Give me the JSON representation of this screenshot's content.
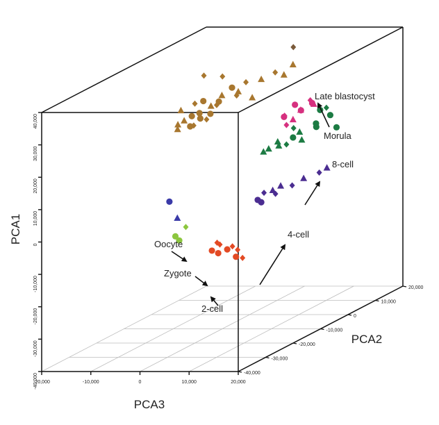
{
  "chart_data": {
    "type": "scatter",
    "title": "",
    "xlabel": "PCA3",
    "ylabel": "PCA2",
    "zlabel": "PCA1",
    "xlim": [
      -20000,
      20000
    ],
    "ylim": [
      -40000,
      20000
    ],
    "zlim": [
      -40000,
      40000
    ],
    "grid": true,
    "axis_titles": {
      "pca1": "PCA1",
      "pca2": "PCA2",
      "pca3": "PCA3"
    },
    "ticks": {
      "pca1": [
        "-40,000",
        "-30,000",
        "-20,000",
        "-10,000",
        "0",
        "10,000",
        "20,000",
        "30,000",
        "40,000"
      ],
      "pca2": [
        "-40,000",
        "-30,000",
        "-20,000",
        "-10,000",
        "0",
        "10,000",
        "20,000"
      ],
      "pca3": [
        "-20,000",
        "-10,000",
        "0",
        "10,000",
        "20,000"
      ]
    },
    "labels": {
      "late_blastocyst": "Late blastocyst",
      "morula": "Morula",
      "eight_cell": "8-cell",
      "four_cell": "4-cell",
      "oocyte": "Oocyte",
      "zygote": "Zygote",
      "two_cell": "2-cell"
    },
    "colors": {
      "brown": "#a8772f",
      "pink": "#d6307f",
      "green": "#1c7b43",
      "purple": "#4b2d91",
      "blue": "#3a3aa8",
      "lightgreen": "#8cc63f",
      "red": "#e34a24"
    },
    "series": [
      {
        "label_key": "late_blastocyst",
        "color": "#7a5a3a",
        "points": [
          {
            "x": 500,
            "y": 15000,
            "z": 36000,
            "m": "diamond"
          }
        ]
      },
      {
        "label_key": "morula",
        "color": "#d6307f",
        "points": [
          {
            "x": 12000,
            "y": -5000,
            "z": 27000,
            "m": "circle"
          },
          {
            "x": 13500,
            "y": -5500,
            "z": 25500,
            "m": "circle"
          },
          {
            "x": 14000,
            "y": -3000,
            "z": 27500,
            "m": "diamond"
          },
          {
            "x": 15000,
            "y": -3500,
            "z": 26500,
            "m": "triangle"
          },
          {
            "x": 11000,
            "y": -7000,
            "z": 24500,
            "m": "diamond"
          },
          {
            "x": 13000,
            "y": -7500,
            "z": 23500,
            "m": "triangle"
          },
          {
            "x": 12500,
            "y": -9000,
            "z": 22500,
            "m": "diamond"
          },
          {
            "x": 15500,
            "y": -5000,
            "z": 27500,
            "m": "circle"
          },
          {
            "x": 14000,
            "y": -6500,
            "z": 26000,
            "m": "triangle"
          },
          {
            "x": 12000,
            "y": -9000,
            "z": 25000,
            "m": "circle"
          }
        ]
      },
      {
        "label_key": "eight_cell",
        "color": "#1c7b43",
        "points": [
          {
            "x": 10000,
            "y": -11000,
            "z": 16000,
            "m": "triangle"
          },
          {
            "x": 11000,
            "y": -9500,
            "z": 17500,
            "m": "triangle"
          },
          {
            "x": 12500,
            "y": -9000,
            "z": 16500,
            "m": "diamond"
          },
          {
            "x": 13000,
            "y": -7500,
            "z": 18000,
            "m": "circle"
          },
          {
            "x": 14500,
            "y": -7000,
            "z": 17000,
            "m": "triangle"
          },
          {
            "x": 12000,
            "y": -5500,
            "z": 20000,
            "m": "diamond"
          },
          {
            "x": 16000,
            "y": -4500,
            "z": 21000,
            "m": "circle"
          },
          {
            "x": 15500,
            "y": -3500,
            "z": 19500,
            "m": "circle"
          },
          {
            "x": 17500,
            "y": -2000,
            "z": 22500,
            "m": "circle"
          },
          {
            "x": 18500,
            "y": -1500,
            "z": 18500,
            "m": "circle"
          },
          {
            "x": 17000,
            "y": -2500,
            "z": 25000,
            "m": "diamond"
          },
          {
            "x": 13500,
            "y": -6000,
            "z": 19000,
            "m": "triangle"
          },
          {
            "x": 16000,
            "y": -3000,
            "z": 24500,
            "m": "circle"
          },
          {
            "x": 11500,
            "y": -10000,
            "z": 16500,
            "m": "triangle"
          },
          {
            "x": 9500,
            "y": -12000,
            "z": 15500,
            "m": "triangle"
          }
        ]
      },
      {
        "label_key": "four_cell",
        "color": "#4b2d91",
        "points": [
          {
            "x": 10000,
            "y": -15000,
            "z": 2000,
            "m": "circle"
          },
          {
            "x": 11000,
            "y": -14500,
            "z": 4000,
            "m": "diamond"
          },
          {
            "x": 12500,
            "y": -13000,
            "z": 3000,
            "m": "diamond"
          },
          {
            "x": 13000,
            "y": -12000,
            "z": 5000,
            "m": "triangle"
          },
          {
            "x": 14500,
            "y": -10500,
            "z": 4500,
            "m": "diamond"
          },
          {
            "x": 16000,
            "y": -9000,
            "z": 6000,
            "m": "triangle"
          },
          {
            "x": 17500,
            "y": -6000,
            "z": 6500,
            "m": "diamond"
          },
          {
            "x": 18500,
            "y": -5000,
            "z": 7500,
            "m": "triangle"
          },
          {
            "x": 11000,
            "y": -15500,
            "z": 1500,
            "m": "circle"
          },
          {
            "x": 12500,
            "y": -14000,
            "z": 4500,
            "m": "triangle"
          }
        ]
      },
      {
        "label_key": "oocyte",
        "color": "#3a3aa8",
        "points": [
          {
            "x": -3500,
            "y": -23000,
            "z": 5000,
            "m": "circle"
          },
          {
            "x": -3000,
            "y": -21000,
            "z": -1000,
            "m": "triangle"
          }
        ]
      },
      {
        "label_key": "zygote",
        "color": "#8cc63f",
        "points": [
          {
            "x": -1500,
            "y": -23000,
            "z": -7000,
            "m": "circle"
          },
          {
            "x": -1000,
            "y": -21500,
            "z": -3500,
            "m": "diamond"
          },
          {
            "x": -2000,
            "y": -23500,
            "z": -5500,
            "m": "circle"
          }
        ]
      },
      {
        "label_key": "two_cell",
        "color": "#e34a24",
        "points": [
          {
            "x": 8500,
            "y": -29000,
            "z": -7500,
            "m": "circle"
          },
          {
            "x": 9000,
            "y": -27000,
            "z": -6500,
            "m": "diamond"
          },
          {
            "x": 9500,
            "y": -28500,
            "z": -8500,
            "m": "circle"
          },
          {
            "x": 10500,
            "y": -27000,
            "z": -8000,
            "m": "circle"
          },
          {
            "x": 11000,
            "y": -26000,
            "z": -7500,
            "m": "diamond"
          },
          {
            "x": 11500,
            "y": -25000,
            "z": -9000,
            "m": "diamond"
          },
          {
            "x": 12000,
            "y": -26500,
            "z": -10500,
            "m": "circle"
          },
          {
            "x": 12500,
            "y": -25000,
            "z": -11500,
            "m": "diamond"
          },
          {
            "x": 9000,
            "y": -28000,
            "z": -5500,
            "m": "diamond"
          }
        ]
      },
      {
        "label_key": "",
        "color": "#a8772f",
        "points": [
          {
            "x": -14000,
            "y": 0,
            "z": 23000,
            "m": "triangle"
          },
          {
            "x": -12000,
            "y": 1500,
            "z": 24500,
            "m": "diamond"
          },
          {
            "x": -10000,
            "y": 1000,
            "z": 25500,
            "m": "circle"
          },
          {
            "x": -9000,
            "y": 2000,
            "z": 23500,
            "m": "triangle"
          },
          {
            "x": -11500,
            "y": -500,
            "z": 21500,
            "m": "circle"
          },
          {
            "x": -10500,
            "y": 500,
            "z": 22000,
            "m": "circle"
          },
          {
            "x": -9500,
            "y": -1000,
            "z": 21000,
            "m": "circle"
          },
          {
            "x": -8500,
            "y": -500,
            "z": 20500,
            "m": "diamond"
          },
          {
            "x": -12500,
            "y": -1500,
            "z": 20500,
            "m": "triangle"
          },
          {
            "x": -13500,
            "y": -2000,
            "z": 19500,
            "m": "triangle"
          },
          {
            "x": -11000,
            "y": -2000,
            "z": 19000,
            "m": "circle"
          },
          {
            "x": -10000,
            "y": -2500,
            "z": 19500,
            "m": "diamond"
          },
          {
            "x": -8000,
            "y": 0,
            "z": 22000,
            "m": "circle"
          },
          {
            "x": -7000,
            "y": 500,
            "z": 24500,
            "m": "diamond"
          },
          {
            "x": -6500,
            "y": 1500,
            "z": 27000,
            "m": "triangle"
          },
          {
            "x": -7500,
            "y": 3500,
            "z": 32000,
            "m": "diamond"
          },
          {
            "x": -11000,
            "y": 3000,
            "z": 32500,
            "m": "diamond"
          },
          {
            "x": -5000,
            "y": 2500,
            "z": 29000,
            "m": "circle"
          },
          {
            "x": -4000,
            "y": 3000,
            "z": 27500,
            "m": "triangle"
          },
          {
            "x": -3000,
            "y": 4000,
            "z": 30000,
            "m": "diamond"
          },
          {
            "x": -2000,
            "y": 4500,
            "z": 25000,
            "m": "triangle"
          },
          {
            "x": -1000,
            "y": 6000,
            "z": 30000,
            "m": "triangle"
          },
          {
            "x": 1000,
            "y": 7500,
            "z": 31500,
            "m": "diamond"
          },
          {
            "x": 2500,
            "y": 8000,
            "z": 30500,
            "m": "triangle"
          },
          {
            "x": 3500,
            "y": 9500,
            "z": 33000,
            "m": "triangle"
          },
          {
            "x": -3500,
            "y": 1500,
            "z": 27000,
            "m": "diamond"
          },
          {
            "x": -6000,
            "y": -500,
            "z": 26000,
            "m": "circle"
          },
          {
            "x": -13000,
            "y": -3000,
            "z": 18500,
            "m": "triangle"
          }
        ]
      }
    ]
  }
}
